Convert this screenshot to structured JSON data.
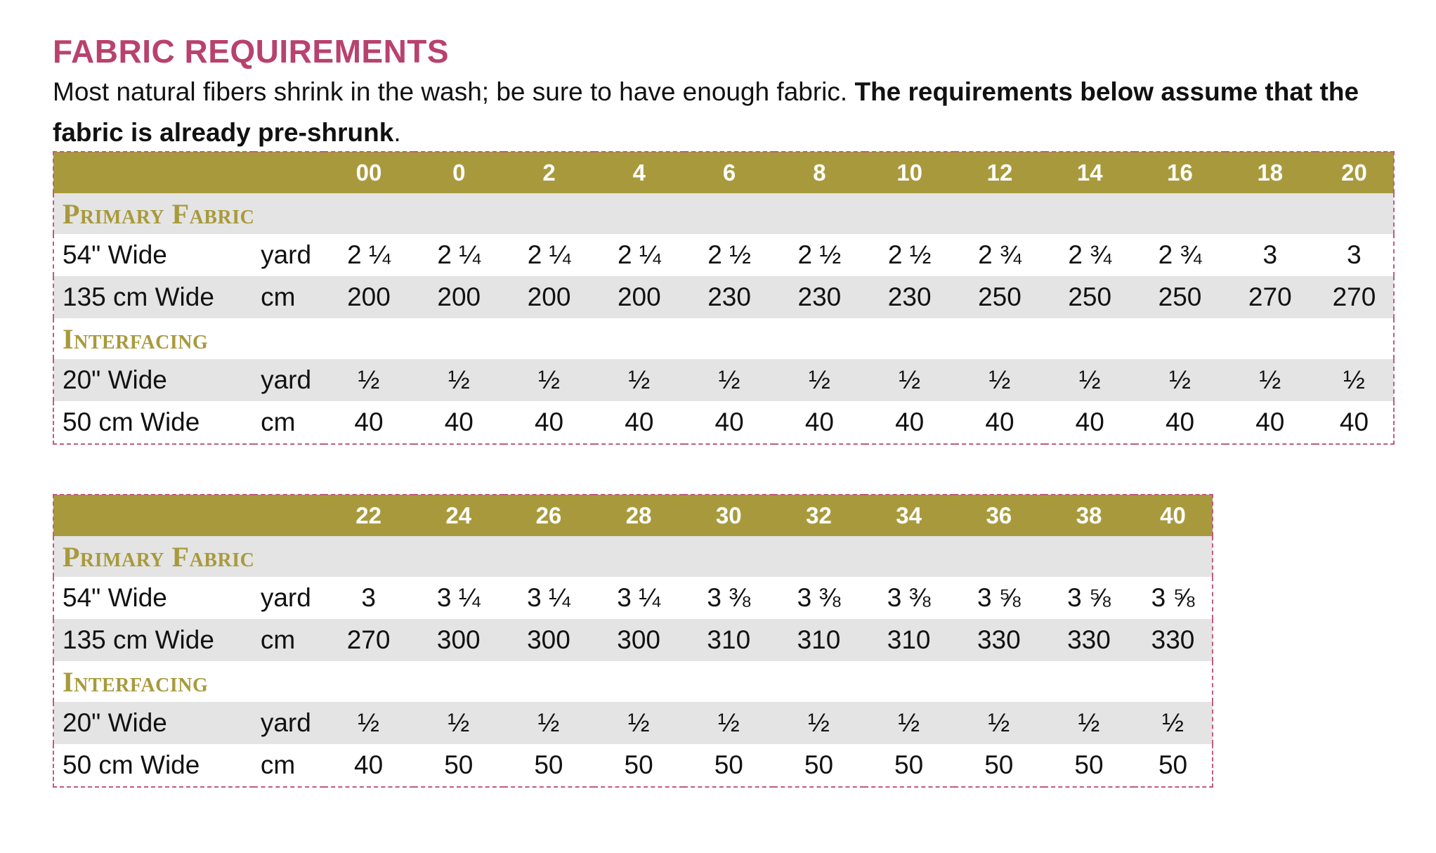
{
  "title": "FABRIC REQUIREMENTS",
  "intro": {
    "normal": "Most natural fibers shrink in the wash; be sure to have enough fabric. ",
    "bold": "The requirements below assume that the fabric is already pre-shrunk",
    "end": "."
  },
  "colors": {
    "title": "#b8426d",
    "accent": "#a89a3c",
    "row_shade": "#e4e4e4",
    "dash_border": "#c05a82"
  },
  "tables": [
    {
      "sizes": [
        "00",
        "0",
        "2",
        "4",
        "6",
        "8",
        "10",
        "12",
        "14",
        "16",
        "18",
        "20"
      ],
      "sections": [
        {
          "label": "Primary Fabric",
          "rows": [
            {
              "name": "54\" Wide",
              "unit": "yard",
              "values": [
                "2 ¼",
                "2 ¼",
                "2 ¼",
                "2 ¼",
                "2 ½",
                "2 ½",
                "2 ½",
                "2 ¾",
                "2 ¾",
                "2 ¾",
                "3",
                "3"
              ]
            },
            {
              "name": "135 cm Wide",
              "unit": "cm",
              "values": [
                "200",
                "200",
                "200",
                "200",
                "230",
                "230",
                "230",
                "250",
                "250",
                "250",
                "270",
                "270"
              ]
            }
          ]
        },
        {
          "label": "Interfacing",
          "rows": [
            {
              "name": "20\" Wide",
              "unit": "yard",
              "values": [
                "½",
                "½",
                "½",
                "½",
                "½",
                "½",
                "½",
                "½",
                "½",
                "½",
                "½",
                "½"
              ]
            },
            {
              "name": "50 cm Wide",
              "unit": "cm",
              "values": [
                "40",
                "40",
                "40",
                "40",
                "40",
                "40",
                "40",
                "40",
                "40",
                "40",
                "40",
                "40"
              ]
            }
          ]
        }
      ]
    },
    {
      "sizes": [
        "22",
        "24",
        "26",
        "28",
        "30",
        "32",
        "34",
        "36",
        "38",
        "40"
      ],
      "sections": [
        {
          "label": "Primary Fabric",
          "rows": [
            {
              "name": "54\" Wide",
              "unit": "yard",
              "values": [
                "3",
                "3 ¼",
                "3 ¼",
                "3 ¼",
                "3 ⅜",
                "3 ⅜",
                "3 ⅜",
                "3 ⅝",
                "3 ⅝",
                "3 ⅝"
              ]
            },
            {
              "name": "135 cm Wide",
              "unit": "cm",
              "values": [
                "270",
                "300",
                "300",
                "300",
                "310",
                "310",
                "310",
                "330",
                "330",
                "330"
              ]
            }
          ]
        },
        {
          "label": "Interfacing",
          "rows": [
            {
              "name": "20\" Wide",
              "unit": "yard",
              "values": [
                "½",
                "½",
                "½",
                "½",
                "½",
                "½",
                "½",
                "½",
                "½",
                "½"
              ]
            },
            {
              "name": "50 cm Wide",
              "unit": "cm",
              "values": [
                "40",
                "50",
                "50",
                "50",
                "50",
                "50",
                "50",
                "50",
                "50",
                "50"
              ]
            }
          ]
        }
      ]
    }
  ]
}
